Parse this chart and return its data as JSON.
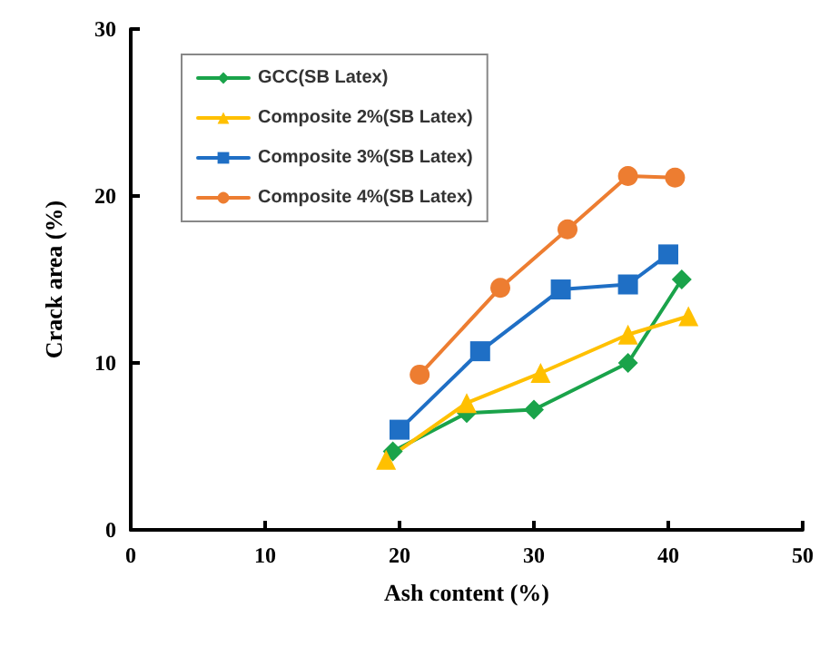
{
  "chart_data": {
    "type": "line",
    "xlabel": "Ash content (%)",
    "ylabel": "Crack area (%)",
    "xlim": [
      0,
      50
    ],
    "xticks": [
      0,
      10,
      20,
      30,
      40,
      50
    ],
    "ylim": [
      0,
      30
    ],
    "yticks": [
      0,
      10,
      20,
      30
    ],
    "grid": false,
    "legend": "top left",
    "series": [
      {
        "name": "GCC(SB Latex)",
        "color": "#1aa34a",
        "marker": "diamond",
        "x": [
          19.5,
          25,
          30,
          37,
          41
        ],
        "values": [
          4.7,
          7,
          7.2,
          10,
          15
        ]
      },
      {
        "name": "Composite 2%(SB Latex)",
        "color": "#ffc000",
        "marker": "triangle",
        "x": [
          19,
          25,
          30.5,
          37,
          41.5
        ],
        "values": [
          4.2,
          7.6,
          9.4,
          11.7,
          12.8
        ]
      },
      {
        "name": "Composite 3%(SB Latex)",
        "color": "#1f6fc5",
        "marker": "square",
        "x": [
          20,
          26,
          32,
          37,
          40
        ],
        "values": [
          6,
          10.7,
          14.4,
          14.7,
          16.5
        ]
      },
      {
        "name": "Composite 4%(SB Latex)",
        "color": "#ed7d31",
        "marker": "circle",
        "x": [
          21.5,
          27.5,
          32.5,
          37,
          40.5
        ],
        "values": [
          9.3,
          14.5,
          18,
          21.2,
          21.1
        ]
      }
    ]
  }
}
